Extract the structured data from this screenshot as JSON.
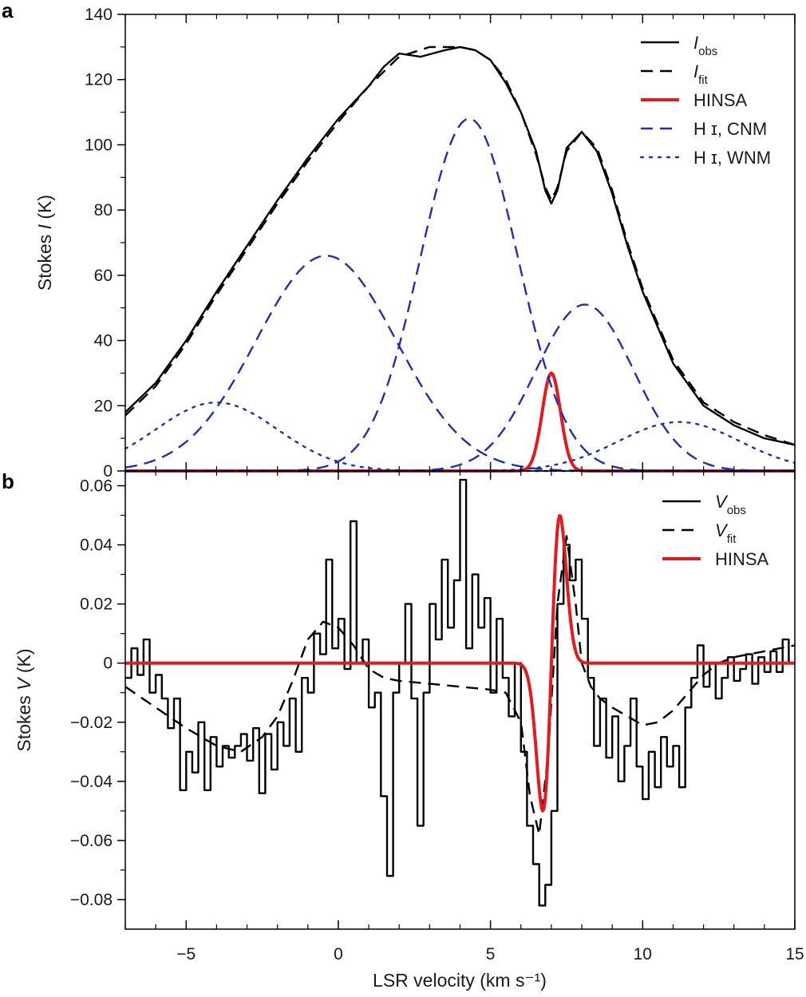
{
  "chart_data": [
    {
      "panel": "a",
      "type": "line",
      "xlabel": "LSR velocity (km s⁻¹)",
      "ylabel_prefix": "Stokes ",
      "ylabel_var": "I",
      "ylabel_suffix": " (K)",
      "xlim": [
        -7,
        15
      ],
      "ylim": [
        0,
        140
      ],
      "xticks": [
        -5,
        0,
        5,
        10,
        15
      ],
      "xtick_labels": [
        "−5",
        "0",
        "5",
        "10",
        "15"
      ],
      "yticks": [
        0,
        20,
        40,
        60,
        80,
        100,
        120,
        140
      ],
      "ytick_labels": [
        "0",
        "20",
        "40",
        "60",
        "80",
        "100",
        "120",
        "140"
      ],
      "legend": [
        {
          "var": "I",
          "sub": "obs",
          "text": "",
          "style": "solid",
          "color": "#000000"
        },
        {
          "var": "I",
          "sub": "fit",
          "text": "",
          "style": "dashed",
          "color": "#000000"
        },
        {
          "var": "",
          "sub": "",
          "text": "HINSA",
          "style": "solid-thick",
          "color": "#e41a1c"
        },
        {
          "var": "",
          "sub": "",
          "text": "H ɪ, CNM",
          "style": "dashed",
          "color": "#1f2fb0"
        },
        {
          "var": "",
          "sub": "",
          "text": "H ɪ, WNM",
          "style": "dotted",
          "color": "#1f2fb0"
        }
      ],
      "series": [
        {
          "name": "I_obs",
          "color": "#000000",
          "style": "solid",
          "x": [
            -7,
            -6,
            -5,
            -4,
            -3,
            -2,
            -1,
            0,
            1,
            1.5,
            2,
            2.7,
            3.5,
            4,
            4.5,
            5,
            5.5,
            6,
            6.5,
            6.8,
            7,
            7.2,
            7.5,
            8,
            8.5,
            9,
            9.5,
            10,
            11,
            12,
            13,
            14,
            15
          ],
          "y": [
            18,
            27,
            40,
            55,
            69,
            83,
            96,
            108,
            118,
            124,
            128,
            127,
            129,
            130,
            129,
            126,
            119,
            110,
            98,
            86,
            82,
            86,
            99,
            104,
            98,
            85,
            69,
            55,
            33,
            20,
            14,
            10,
            8
          ]
        },
        {
          "name": "I_fit",
          "color": "#000000",
          "style": "dashed",
          "x": [
            -7,
            -6,
            -5,
            -4,
            -3,
            -2,
            -1,
            0,
            1,
            2,
            3,
            4,
            4.5,
            5,
            5.5,
            6,
            6.5,
            6.8,
            7,
            7.2,
            7.5,
            8,
            8.5,
            9,
            9.5,
            10,
            11,
            12,
            13,
            14,
            15
          ],
          "y": [
            17,
            26,
            39,
            54,
            68,
            82,
            95,
            107,
            118,
            127,
            130,
            130,
            129,
            126,
            120,
            110,
            97,
            87,
            83,
            87,
            98,
            104,
            99,
            86,
            70,
            56,
            34,
            21,
            15,
            11,
            8
          ]
        },
        {
          "name": "HINSA",
          "color": "#e41a1c",
          "style": "solid",
          "gaussian": {
            "amp": 30,
            "center": 7.0,
            "sigma": 0.3
          }
        },
        {
          "name": "HI CNM 1",
          "color": "#1f2fb0",
          "style": "dashed",
          "gaussian": {
            "amp": 66,
            "center": -0.4,
            "sigma": 2.3
          }
        },
        {
          "name": "HI CNM 2",
          "color": "#1f2fb0",
          "style": "dashed",
          "gaussian": {
            "amp": 108,
            "center": 4.3,
            "sigma": 1.6
          }
        },
        {
          "name": "HI CNM 3",
          "color": "#1f2fb0",
          "style": "dashed",
          "gaussian": {
            "amp": 51,
            "center": 8.1,
            "sigma": 1.6
          }
        },
        {
          "name": "HI WNM 1",
          "color": "#1f2fb0",
          "style": "dotted",
          "gaussian": {
            "amp": 21,
            "center": -4.0,
            "sigma": 2.0
          }
        },
        {
          "name": "HI WNM 2",
          "color": "#1f2fb0",
          "style": "dotted",
          "gaussian": {
            "amp": 15,
            "center": 11.2,
            "sigma": 2.0
          }
        }
      ]
    },
    {
      "panel": "b",
      "type": "line",
      "xlabel": "LSR velocity (km s⁻¹)",
      "ylabel_prefix": "Stokes ",
      "ylabel_var": "V",
      "ylabel_suffix": " (K)",
      "xlim": [
        -7,
        15
      ],
      "ylim": [
        -0.09,
        0.065
      ],
      "xticks": [
        -5,
        0,
        5,
        10,
        15
      ],
      "xtick_labels": [
        "−5",
        "0",
        "5",
        "10",
        "15"
      ],
      "yticks": [
        0.06,
        0.04,
        0.02,
        0,
        -0.02,
        -0.04,
        -0.06,
        -0.08
      ],
      "ytick_labels": [
        "0.06",
        "0.04",
        "0.02",
        "0",
        "−0.02",
        "−0.04",
        "−0.06",
        "−0.08"
      ],
      "legend": [
        {
          "var": "V",
          "sub": "obs",
          "text": "",
          "style": "solid",
          "color": "#000000"
        },
        {
          "var": "V",
          "sub": "fit",
          "text": "",
          "style": "dashed",
          "color": "#000000"
        },
        {
          "var": "",
          "sub": "",
          "text": "HINSA",
          "style": "solid-thick",
          "color": "#e41a1c"
        }
      ],
      "series": [
        {
          "name": "V_obs",
          "color": "#000000",
          "style": "steps",
          "x": [
            -7.0,
            -6.8,
            -6.6,
            -6.4,
            -6.2,
            -6.0,
            -5.8,
            -5.6,
            -5.4,
            -5.2,
            -5.0,
            -4.8,
            -4.6,
            -4.4,
            -4.2,
            -4.0,
            -3.8,
            -3.6,
            -3.4,
            -3.2,
            -3.0,
            -2.8,
            -2.6,
            -2.4,
            -2.2,
            -2.0,
            -1.8,
            -1.6,
            -1.4,
            -1.2,
            -1.0,
            -0.8,
            -0.6,
            -0.4,
            -0.2,
            0.0,
            0.2,
            0.4,
            0.6,
            0.8,
            1.0,
            1.2,
            1.4,
            1.6,
            1.8,
            2.0,
            2.2,
            2.4,
            2.6,
            2.8,
            3.0,
            3.2,
            3.4,
            3.6,
            3.8,
            4.0,
            4.2,
            4.4,
            4.6,
            4.8,
            5.0,
            5.2,
            5.4,
            5.6,
            5.8,
            6.0,
            6.2,
            6.4,
            6.6,
            6.8,
            7.0,
            7.2,
            7.4,
            7.6,
            7.8,
            8.0,
            8.2,
            8.4,
            8.6,
            8.8,
            9.0,
            9.2,
            9.4,
            9.6,
            9.8,
            10.0,
            10.2,
            10.4,
            10.6,
            10.8,
            11.0,
            11.2,
            11.4,
            11.6,
            11.8,
            12.0,
            12.2,
            12.4,
            12.6,
            12.8,
            13.0,
            13.2,
            13.4,
            13.6,
            13.8,
            14.0,
            14.2,
            14.4,
            14.6,
            14.8
          ],
          "y": [
            -0.005,
            0.005,
            -0.004,
            0.008,
            -0.01,
            -0.004,
            -0.012,
            -0.022,
            -0.012,
            -0.043,
            -0.03,
            -0.037,
            -0.02,
            -0.043,
            -0.025,
            -0.035,
            -0.028,
            -0.032,
            -0.028,
            -0.024,
            -0.033,
            -0.022,
            -0.044,
            -0.024,
            -0.036,
            -0.02,
            -0.028,
            -0.012,
            -0.03,
            -0.005,
            -0.01,
            0.01,
            0.003,
            0.035,
            0.005,
            0.015,
            -0.002,
            0.048,
            0.0,
            0.008,
            -0.015,
            -0.01,
            -0.045,
            -0.072,
            -0.01,
            0.0,
            0.02,
            -0.012,
            -0.055,
            -0.01,
            0.02,
            0.008,
            0.035,
            0.012,
            0.028,
            0.062,
            0.005,
            0.03,
            0.012,
            0.022,
            -0.01,
            0.015,
            -0.005,
            -0.018,
            0.0,
            -0.03,
            -0.055,
            -0.068,
            -0.082,
            -0.075,
            -0.05,
            0.02,
            0.04,
            0.028,
            0.035,
            0.015,
            -0.005,
            -0.028,
            -0.012,
            -0.032,
            -0.018,
            -0.04,
            -0.028,
            -0.012,
            -0.035,
            -0.046,
            -0.03,
            -0.042,
            -0.025,
            -0.035,
            -0.028,
            -0.042,
            -0.015,
            -0.005,
            0.006,
            -0.008,
            0.0,
            -0.012,
            -0.005,
            0.002,
            -0.006,
            -0.002,
            0.003,
            -0.007,
            0.002,
            -0.003,
            0.004,
            -0.003,
            0.008,
            0.0
          ]
        },
        {
          "name": "V_fit",
          "color": "#000000",
          "style": "dashed",
          "x": [
            -7,
            -6,
            -5,
            -4,
            -3.2,
            -2.5,
            -2,
            -1.5,
            -1,
            -0.5,
            0,
            0.5,
            1,
            1.5,
            2,
            3,
            4,
            5,
            5.5,
            6,
            6.3,
            6.6,
            6.9,
            7.2,
            7.5,
            7.8,
            8,
            8.3,
            8.6,
            9,
            9.5,
            10,
            10.5,
            11,
            11.5,
            12,
            12.5,
            13,
            14,
            15
          ],
          "y": [
            -0.008,
            -0.015,
            -0.022,
            -0.028,
            -0.03,
            -0.025,
            -0.018,
            -0.006,
            0.008,
            0.014,
            0.012,
            0.006,
            -0.002,
            -0.005,
            -0.006,
            -0.007,
            -0.008,
            -0.009,
            -0.01,
            -0.02,
            -0.045,
            -0.058,
            -0.03,
            0.02,
            0.043,
            0.02,
            0.0,
            -0.008,
            -0.012,
            -0.015,
            -0.018,
            -0.021,
            -0.02,
            -0.016,
            -0.01,
            -0.004,
            0.0,
            0.002,
            0.004,
            0.006
          ]
        },
        {
          "name": "HINSA",
          "color": "#e41a1c",
          "style": "solid",
          "dgaussian": {
            "amp": 0.05,
            "center": 7.0,
            "sigma": 0.28
          }
        }
      ]
    }
  ]
}
